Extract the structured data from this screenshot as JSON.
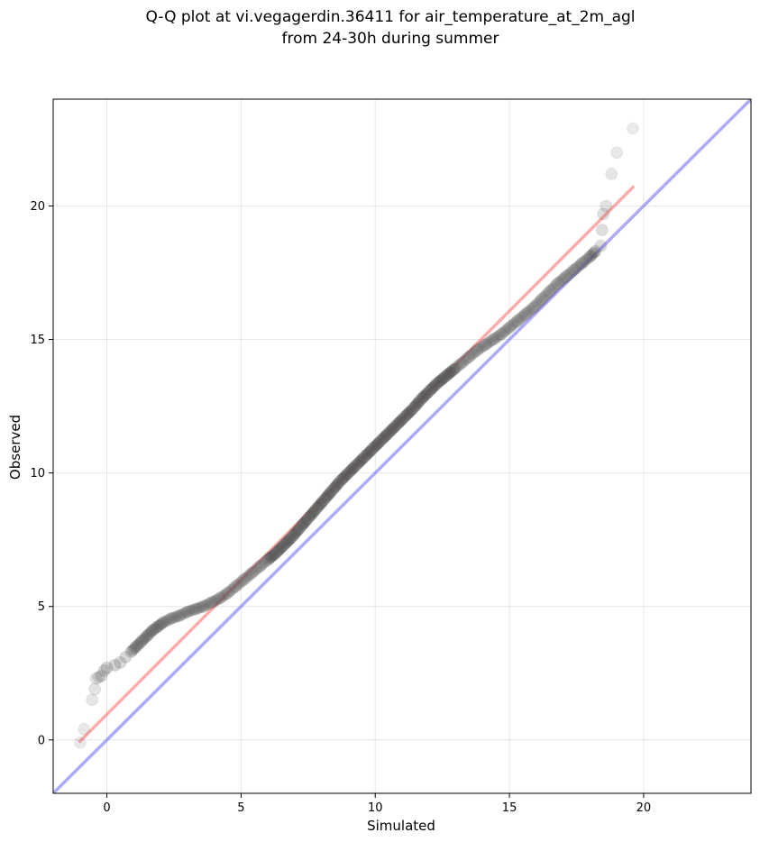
{
  "chart_data": {
    "type": "scatter",
    "title": "Q-Q plot at vi.vegagerdin.36411 for air_temperature_at_2m_agl",
    "subtitle": "from 24-30h during summer",
    "xlabel": "Simulated",
    "ylabel": "Observed",
    "xlim": [
      -2.0,
      24.0
    ],
    "ylim": [
      -2.0,
      24.0
    ],
    "xticks": [
      0,
      5,
      10,
      15,
      20
    ],
    "yticks": [
      0,
      5,
      10,
      15,
      20
    ],
    "xtick_labels": [
      "0",
      "5",
      "10",
      "15",
      "20"
    ],
    "ytick_labels": [
      "0",
      "5",
      "10",
      "15",
      "20"
    ],
    "grid": true,
    "legend": "none",
    "colors": {
      "points": "#555555",
      "fit_line": "#ff6666",
      "identity_line": "#6666ee"
    },
    "fit_line": {
      "x": [
        -1.0,
        19.6
      ],
      "y": [
        -0.05,
        20.7
      ]
    },
    "identity_line": {
      "x": [
        -2.0,
        24.0
      ],
      "y": [
        -2.0,
        24.0
      ]
    },
    "series": [
      {
        "x": [
          -1.0,
          -0.85,
          -0.55,
          -0.45,
          -0.4,
          -0.3,
          -0.2,
          -0.1,
          0.0,
          0.3,
          0.5,
          0.7,
          0.9,
          1.1,
          1.3,
          1.5,
          1.7,
          1.9,
          2.1,
          2.4,
          2.7,
          3.0,
          3.3,
          3.6,
          3.9,
          4.2,
          4.5,
          4.8,
          5.1,
          5.4,
          5.7,
          6.0,
          6.3,
          6.6,
          6.9,
          7.2,
          7.5,
          7.8,
          8.1,
          8.4,
          8.7,
          9.0,
          9.3,
          9.6,
          9.9,
          10.2,
          10.5,
          10.8,
          11.1,
          11.4,
          11.7,
          12.0,
          12.3,
          12.6,
          12.9,
          13.2,
          13.5,
          13.8,
          14.1,
          14.4,
          14.7,
          15.0,
          15.3,
          15.6,
          15.9,
          16.2,
          16.5,
          16.8,
          17.1,
          17.4,
          17.7,
          18.0,
          18.2,
          18.4,
          18.45,
          18.5,
          18.6,
          18.8,
          19.0,
          19.6
        ],
        "y": [
          -0.1,
          0.4,
          1.5,
          1.9,
          2.3,
          2.35,
          2.4,
          2.6,
          2.7,
          2.8,
          2.9,
          3.1,
          3.3,
          3.5,
          3.7,
          3.9,
          4.1,
          4.25,
          4.4,
          4.55,
          4.65,
          4.8,
          4.9,
          5.0,
          5.15,
          5.3,
          5.5,
          5.75,
          6.0,
          6.25,
          6.5,
          6.75,
          7.0,
          7.3,
          7.6,
          7.95,
          8.3,
          8.65,
          9.0,
          9.35,
          9.7,
          10.0,
          10.3,
          10.6,
          10.9,
          11.2,
          11.5,
          11.8,
          12.1,
          12.4,
          12.75,
          13.05,
          13.35,
          13.6,
          13.85,
          14.1,
          14.35,
          14.6,
          14.8,
          15.0,
          15.2,
          15.45,
          15.7,
          15.95,
          16.2,
          16.5,
          16.8,
          17.1,
          17.35,
          17.6,
          17.85,
          18.1,
          18.3,
          18.5,
          19.1,
          19.7,
          20.0,
          21.2,
          22.0,
          22.9
        ]
      }
    ]
  }
}
